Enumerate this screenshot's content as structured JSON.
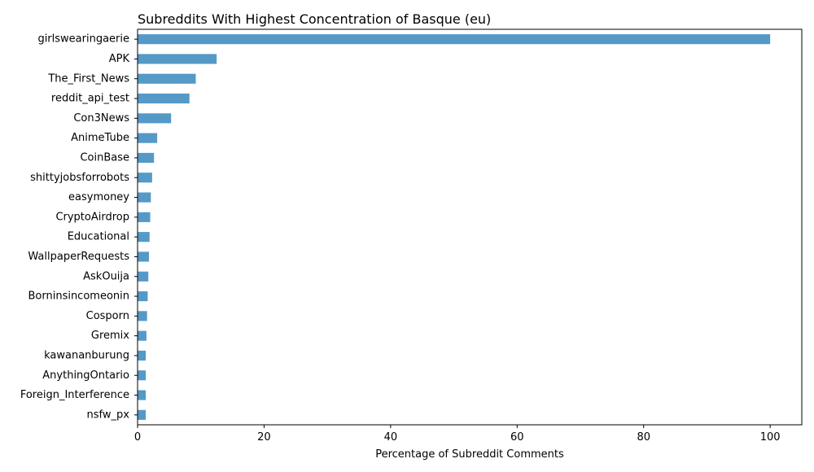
{
  "chart_data": {
    "type": "bar",
    "orientation": "horizontal",
    "title": "Subreddits With Highest Concentration of Basque (eu)",
    "xlabel": "Percentage of Subreddit Comments",
    "ylabel": "",
    "xlim": [
      0,
      105
    ],
    "xticks": [
      0,
      20,
      40,
      60,
      80,
      100
    ],
    "grid": false,
    "bar_color": "#5599c7",
    "categories": [
      "girlswearingaerie",
      "APK",
      "The_First_News",
      "reddit_api_test",
      "Con3News",
      "AnimeTube",
      "CoinBase",
      "shittyjobsforrobots",
      "easymoney",
      "CryptoAirdrop",
      "Educational",
      "WallpaperRequests",
      "AskOuija",
      "Borninsincomeonin",
      "Cosporn",
      "Gremix",
      "kawananburung",
      "AnythingOntario",
      "Foreign_Interference",
      "nsfw_px"
    ],
    "values": [
      100,
      12.5,
      9.2,
      8.2,
      5.3,
      3.1,
      2.6,
      2.3,
      2.1,
      2.0,
      1.9,
      1.8,
      1.7,
      1.6,
      1.5,
      1.4,
      1.3,
      1.3,
      1.3,
      1.3
    ]
  }
}
